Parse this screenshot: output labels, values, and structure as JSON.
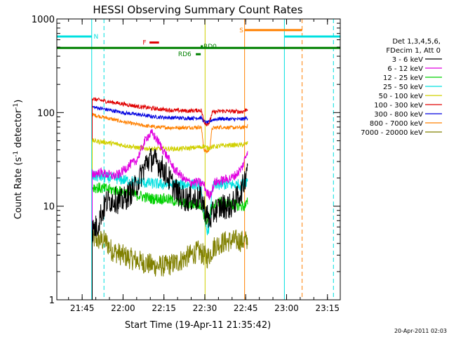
{
  "chart_data": {
    "type": "line",
    "title": "HESSI Observing Summary Count Rates",
    "xlabel": "Start Time (19-Apr-11 21:35:42)",
    "ylabel_main": "Count Rate (s",
    "ylabel_sup1": "-1",
    "ylabel_mid": " detector",
    "ylabel_sup2": "-1",
    "ylabel_end": ")",
    "footer_stamp": "20-Apr-2011 02:03",
    "y_scale": "log",
    "ylim": [
      1,
      1000
    ],
    "xlim_minutes": [
      0,
      104
    ],
    "x_ticks": [
      {
        "label": "21:45",
        "minutes": 9.3
      },
      {
        "label": "22:00",
        "minutes": 24.3
      },
      {
        "label": "22:15",
        "minutes": 39.3
      },
      {
        "label": "22:30",
        "minutes": 54.3
      },
      {
        "label": "22:45",
        "minutes": 69.3
      },
      {
        "label": "23:00",
        "minutes": 84.3
      },
      {
        "label": "23:15",
        "minutes": 99.3
      }
    ],
    "y_ticks": [
      {
        "label": "1",
        "value": 1
      },
      {
        "label": "10",
        "value": 10
      },
      {
        "label": "100",
        "value": 100
      },
      {
        "label": "1000",
        "value": 1000
      }
    ],
    "legend_header": [
      "Det 1,3,4,5,6,",
      "FDecim 1, Att 0"
    ],
    "series": [
      {
        "name": "3 - 6 keV",
        "color": "#000000",
        "points": [
          [
            13,
            5.5
          ],
          [
            15,
            6.2
          ],
          [
            16,
            8
          ],
          [
            17,
            9
          ],
          [
            18,
            11
          ],
          [
            21,
            12
          ],
          [
            23,
            11
          ],
          [
            25,
            12
          ],
          [
            27,
            14
          ],
          [
            29,
            16
          ],
          [
            31,
            22
          ],
          [
            33,
            30
          ],
          [
            35,
            32
          ],
          [
            37,
            29
          ],
          [
            39,
            25
          ],
          [
            41,
            20
          ],
          [
            43,
            16
          ],
          [
            45,
            13
          ],
          [
            47,
            12
          ],
          [
            50,
            12
          ],
          [
            53,
            12
          ],
          [
            54,
            10
          ],
          [
            55,
            8
          ],
          [
            56,
            7
          ],
          [
            57,
            8
          ],
          [
            58,
            9
          ],
          [
            61,
            10
          ],
          [
            64,
            10
          ],
          [
            66,
            12
          ],
          [
            68,
            15
          ],
          [
            69,
            20
          ],
          [
            70,
            30
          ]
        ],
        "noise": 0.14
      },
      {
        "name": "6 - 12 keV",
        "color": "#e000e0",
        "points": [
          [
            13,
            22
          ],
          [
            16,
            23
          ],
          [
            18,
            22
          ],
          [
            21,
            21
          ],
          [
            23,
            22
          ],
          [
            25,
            25
          ],
          [
            27,
            28
          ],
          [
            29,
            30
          ],
          [
            31,
            40
          ],
          [
            33,
            55
          ],
          [
            35,
            60
          ],
          [
            37,
            50
          ],
          [
            39,
            40
          ],
          [
            41,
            32
          ],
          [
            43,
            25
          ],
          [
            45,
            22
          ],
          [
            47,
            19
          ],
          [
            49,
            18
          ],
          [
            52,
            18
          ],
          [
            54,
            17
          ],
          [
            55,
            14
          ],
          [
            56,
            13
          ],
          [
            57,
            15
          ],
          [
            58,
            18
          ],
          [
            61,
            19
          ],
          [
            64,
            20
          ],
          [
            66,
            22
          ],
          [
            68,
            26
          ],
          [
            69,
            32
          ],
          [
            70,
            40
          ]
        ],
        "noise": 0.05
      },
      {
        "name": "12 - 25 keV",
        "color": "#00d000",
        "points": [
          [
            13,
            16
          ],
          [
            20,
            15
          ],
          [
            25,
            14
          ],
          [
            30,
            13
          ],
          [
            35,
            12
          ],
          [
            40,
            12
          ],
          [
            45,
            11
          ],
          [
            50,
            10.5
          ],
          [
            53,
            10.5
          ],
          [
            54,
            8
          ],
          [
            55,
            7
          ],
          [
            56,
            7.5
          ],
          [
            57,
            10
          ],
          [
            60,
            11
          ],
          [
            64,
            10.5
          ],
          [
            68,
            10
          ],
          [
            69,
            10
          ],
          [
            70,
            11
          ]
        ],
        "noise": 0.06
      },
      {
        "name": "25 - 50 keV",
        "color": "#00e0e0",
        "points": [
          [
            13,
            21
          ],
          [
            20,
            20
          ],
          [
            25,
            19
          ],
          [
            30,
            18
          ],
          [
            35,
            17.5
          ],
          [
            40,
            17
          ],
          [
            45,
            17
          ],
          [
            50,
            17
          ],
          [
            53,
            16.5
          ],
          [
            54,
            8
          ],
          [
            55,
            5.5
          ],
          [
            56,
            6
          ],
          [
            57,
            16
          ],
          [
            60,
            17
          ],
          [
            64,
            17
          ],
          [
            68,
            17
          ],
          [
            69,
            18
          ],
          [
            70,
            19
          ]
        ],
        "noise": 0.06
      },
      {
        "name": "50 - 100 keV",
        "color": "#d0d000",
        "points": [
          [
            13,
            50
          ],
          [
            18,
            48
          ],
          [
            24,
            45
          ],
          [
            30,
            42
          ],
          [
            35,
            41
          ],
          [
            40,
            41
          ],
          [
            45,
            41
          ],
          [
            50,
            42
          ],
          [
            53,
            43
          ],
          [
            54,
            44
          ],
          [
            55,
            42
          ],
          [
            56,
            42
          ],
          [
            57,
            43
          ],
          [
            60,
            44
          ],
          [
            64,
            45
          ],
          [
            68,
            45
          ],
          [
            69,
            46
          ],
          [
            70,
            47
          ]
        ],
        "noise": 0.025
      },
      {
        "name": "100 - 300 keV",
        "color": "#e00000",
        "points": [
          [
            13,
            140
          ],
          [
            18,
            132
          ],
          [
            24,
            124
          ],
          [
            30,
            116
          ],
          [
            36,
            110
          ],
          [
            42,
            106
          ],
          [
            48,
            104
          ],
          [
            53,
            106
          ],
          [
            54,
            80
          ],
          [
            55,
            75
          ],
          [
            56,
            78
          ],
          [
            57,
            100
          ],
          [
            60,
            104
          ],
          [
            64,
            103
          ],
          [
            68,
            102
          ],
          [
            69,
            105
          ],
          [
            70,
            110
          ]
        ],
        "noise": 0.022
      },
      {
        "name": "300 - 800 keV",
        "color": "#0000e0",
        "points": [
          [
            13,
            115
          ],
          [
            18,
            108
          ],
          [
            24,
            100
          ],
          [
            30,
            95
          ],
          [
            36,
            90
          ],
          [
            42,
            88
          ],
          [
            48,
            87
          ],
          [
            53,
            88
          ],
          [
            54,
            80
          ],
          [
            55,
            78
          ],
          [
            56,
            79
          ],
          [
            57,
            84
          ],
          [
            60,
            86
          ],
          [
            64,
            85
          ],
          [
            68,
            85
          ],
          [
            69,
            86
          ],
          [
            70,
            88
          ]
        ],
        "noise": 0.02
      },
      {
        "name": "800 - 7000 keV",
        "color": "#ff8000",
        "points": [
          [
            13,
            95
          ],
          [
            18,
            88
          ],
          [
            24,
            80
          ],
          [
            30,
            74
          ],
          [
            36,
            70
          ],
          [
            42,
            69
          ],
          [
            48,
            69
          ],
          [
            53,
            70
          ],
          [
            54,
            40
          ],
          [
            55,
            38
          ],
          [
            56,
            40
          ],
          [
            57,
            68
          ],
          [
            60,
            70
          ],
          [
            64,
            69
          ],
          [
            68,
            69
          ],
          [
            69,
            70
          ],
          [
            70,
            72
          ]
        ],
        "noise": 0.02
      },
      {
        "name": "7000 - 20000 keV",
        "color": "#808000",
        "points": [
          [
            13,
            4.5
          ],
          [
            18,
            4.2
          ],
          [
            20,
            3.4
          ],
          [
            24,
            3
          ],
          [
            28,
            2.7
          ],
          [
            32,
            2.5
          ],
          [
            36,
            2.3
          ],
          [
            40,
            2.3
          ],
          [
            44,
            2.5
          ],
          [
            48,
            2.9
          ],
          [
            52,
            3.3
          ],
          [
            54,
            3
          ],
          [
            55,
            2.8
          ],
          [
            56,
            3
          ],
          [
            58,
            3.8
          ],
          [
            62,
            4.2
          ],
          [
            66,
            4.3
          ],
          [
            69,
            4.2
          ],
          [
            70,
            4.4
          ]
        ],
        "noise": 0.12
      }
    ],
    "flag_bars": [
      {
        "label": "N",
        "color": "#00e0e0",
        "segments": [
          [
            0,
            12.8
          ],
          [
            83.5,
            104
          ]
        ],
        "level": 650,
        "label_at": 13.5
      },
      {
        "label": "S",
        "color": "#ff8000",
        "segments": [
          [
            69,
            90
          ]
        ],
        "level": 760,
        "label_at": 67
      },
      {
        "label": "F",
        "color": "#e00000",
        "segments": [
          [
            34,
            37.5
          ]
        ],
        "level": 560,
        "label_at": 31.5
      },
      {
        "label": "RD6",
        "color": "#008000",
        "segments": [
          [
            51,
            52.8
          ]
        ],
        "level": 420,
        "label_at": 44.5
      },
      {
        "label": "RD0",
        "color": "#008000",
        "segments": [
          [
            52.8,
            53.6
          ]
        ],
        "level": 510,
        "label_at": 53.8
      }
    ],
    "saa_line": {
      "color": "#008000",
      "level": 490,
      "range": [
        0,
        104
      ]
    },
    "vertical_markers": [
      {
        "minutes": 0,
        "color": "#00e0e0",
        "style": "solid"
      },
      {
        "minutes": 12.8,
        "color": "#00e0e0",
        "style": "solid"
      },
      {
        "minutes": 17.3,
        "color": "#00e0e0",
        "style": "dashed"
      },
      {
        "minutes": 54.4,
        "color": "#d0d000",
        "style": "solid"
      },
      {
        "minutes": 68.9,
        "color": "#ff8000",
        "style": "solid"
      },
      {
        "minutes": 83.5,
        "color": "#00e0e0",
        "style": "solid"
      },
      {
        "minutes": 90,
        "color": "#ff8000",
        "style": "dashed"
      },
      {
        "minutes": 101.5,
        "color": "#00e0e0",
        "style": "dashed"
      }
    ]
  }
}
